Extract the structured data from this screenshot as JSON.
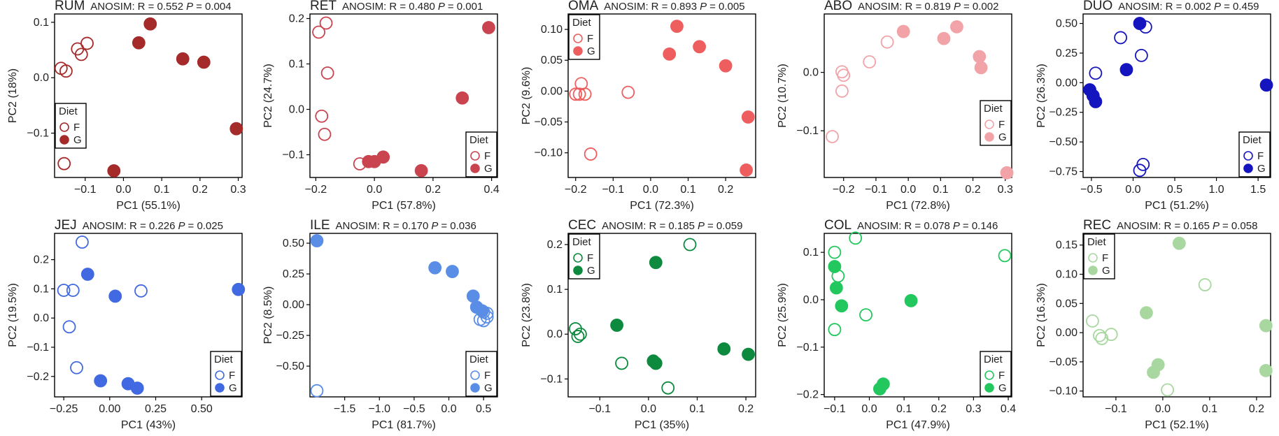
{
  "figure": {
    "layout": "2 rows x 5 panels"
  },
  "chart_data": [
    {
      "type": "scatter",
      "panel": "RUM",
      "title": "RUM",
      "test": "ANOSIM:",
      "r_text": "R = 0.552",
      "p_label": "P",
      "p_text": "= 0.004",
      "xlabel": "PC1 (55.1%)",
      "ylabel": "PC2 (18%)",
      "xlim": [
        -0.18,
        0.31
      ],
      "ylim": [
        -0.18,
        0.115
      ],
      "xticks": [
        -0.1,
        0,
        0.1,
        0.2,
        0.3
      ],
      "xtick_labels": [
        "−0.1",
        "0.0",
        "0.1",
        "0.2",
        "0.3"
      ],
      "yticks": [
        -0.1,
        0,
        0.1
      ],
      "ytick_labels": [
        "−0.1",
        "0.0",
        "0.1"
      ],
      "color": "#a52a2a",
      "legend": {
        "title": "Diet",
        "position": "middle-left",
        "entries": [
          "F",
          "G"
        ]
      },
      "series": [
        {
          "name": "F",
          "filled": false,
          "points": [
            [
              -0.163,
              0.017
            ],
            [
              -0.15,
              0.012
            ],
            [
              -0.12,
              0.052
            ],
            [
              -0.11,
              0.042
            ],
            [
              -0.095,
              0.062
            ],
            [
              -0.155,
              -0.155
            ]
          ]
        },
        {
          "name": "G",
          "filled": true,
          "points": [
            [
              -0.025,
              -0.168
            ],
            [
              0.04,
              0.063
            ],
            [
              0.07,
              0.097
            ],
            [
              0.155,
              0.034
            ],
            [
              0.21,
              0.028
            ],
            [
              0.295,
              -0.092
            ]
          ]
        }
      ]
    },
    {
      "type": "scatter",
      "panel": "RET",
      "title": "RET",
      "test": "ANOSIM:",
      "r_text": "R = 0.480",
      "p_label": "P",
      "p_text": "= 0.001",
      "xlabel": "PC1 (57.8%)",
      "ylabel": "PC2 (24.7%)",
      "xlim": [
        -0.22,
        0.42
      ],
      "ylim": [
        -0.15,
        0.21
      ],
      "xticks": [
        -0.2,
        0,
        0.2,
        0.4
      ],
      "xtick_labels": [
        "−0.2",
        "0.0",
        "0.2",
        "0.4"
      ],
      "yticks": [
        -0.1,
        0,
        0.1,
        0.2
      ],
      "ytick_labels": [
        "−0.1",
        "0.0",
        "0.1",
        "0.2"
      ],
      "color": "#c9444f",
      "legend": {
        "title": "Diet",
        "position": "bottom-right",
        "entries": [
          "F",
          "G"
        ]
      },
      "series": [
        {
          "name": "F",
          "filled": false,
          "points": [
            [
              -0.19,
              0.17
            ],
            [
              -0.165,
              0.19
            ],
            [
              -0.16,
              0.08
            ],
            [
              -0.18,
              -0.015
            ],
            [
              -0.17,
              -0.055
            ],
            [
              -0.05,
              -0.12
            ]
          ]
        },
        {
          "name": "G",
          "filled": true,
          "points": [
            [
              -0.02,
              -0.115
            ],
            [
              0.0,
              -0.115
            ],
            [
              0.03,
              -0.105
            ],
            [
              0.16,
              -0.135
            ],
            [
              0.3,
              0.025
            ],
            [
              0.39,
              0.18
            ]
          ]
        }
      ]
    },
    {
      "type": "scatter",
      "panel": "OMA",
      "title": "OMA",
      "test": "ANOSIM:",
      "r_text": "R = 0.893",
      "p_label": "P",
      "p_text": "= 0.005",
      "xlabel": "PC1 (72.3%)",
      "ylabel": "PC2 (9.6%)",
      "xlim": [
        -0.22,
        0.28
      ],
      "ylim": [
        -0.14,
        0.125
      ],
      "xticks": [
        -0.2,
        -0.1,
        0,
        0.1,
        0.2
      ],
      "xtick_labels": [
        "−0.2",
        "−0.1",
        "0.0",
        "0.1",
        "0.2"
      ],
      "yticks": [
        -0.1,
        -0.05,
        0,
        0.05,
        0.1
      ],
      "ytick_labels": [
        "−0.10",
        "−0.05",
        "0.00",
        "0.05",
        "0.10"
      ],
      "color": "#ee5e5e",
      "legend": {
        "title": "Diet",
        "position": "top-left",
        "entries": [
          "F",
          "G"
        ]
      },
      "series": [
        {
          "name": "F",
          "filled": false,
          "points": [
            [
              -0.2,
              -0.005
            ],
            [
              -0.19,
              -0.005
            ],
            [
              -0.185,
              0.012
            ],
            [
              -0.175,
              -0.005
            ],
            [
              -0.06,
              -0.002
            ],
            [
              -0.16,
              -0.102
            ]
          ]
        },
        {
          "name": "G",
          "filled": true,
          "points": [
            [
              0.05,
              0.06
            ],
            [
              0.07,
              0.105
            ],
            [
              0.13,
              0.072
            ],
            [
              0.2,
              0.041
            ],
            [
              0.26,
              -0.042
            ],
            [
              0.255,
              -0.128
            ]
          ]
        }
      ]
    },
    {
      "type": "scatter",
      "panel": "ABO",
      "title": "ABO",
      "test": "ANOSIM:",
      "r_text": "R = 0.819",
      "p_label": "P",
      "p_text": "= 0.002",
      "xlabel": "PC1 (72.8%)",
      "ylabel": "PC2 (10.7%)",
      "xlim": [
        -0.26,
        0.32
      ],
      "ylim": [
        -0.18,
        0.1
      ],
      "xticks": [
        -0.2,
        -0.1,
        0,
        0.1,
        0.2,
        0.3
      ],
      "xtick_labels": [
        "−0.2",
        "−0.1",
        "0.0",
        "0.1",
        "0.2",
        "0.3"
      ],
      "yticks": [
        -0.1,
        0
      ],
      "ytick_labels": [
        "−0.1",
        "0.0"
      ],
      "color": "#f2a3a8",
      "legend": {
        "title": "Diet",
        "position": "middle-right",
        "entries": [
          "F",
          "G"
        ]
      },
      "series": [
        {
          "name": "F",
          "filled": false,
          "points": [
            [
              -0.235,
              -0.11
            ],
            [
              -0.205,
              -0.032
            ],
            [
              -0.205,
              0.001
            ],
            [
              -0.2,
              -0.005
            ],
            [
              -0.12,
              0.018
            ],
            [
              -0.065,
              0.052
            ]
          ]
        },
        {
          "name": "G",
          "filled": true,
          "points": [
            [
              -0.015,
              0.07
            ],
            [
              0.11,
              0.058
            ],
            [
              0.15,
              0.078
            ],
            [
              0.22,
              0.027
            ],
            [
              0.225,
              0.008
            ],
            [
              0.305,
              -0.172
            ]
          ]
        }
      ]
    },
    {
      "type": "scatter",
      "panel": "DUO",
      "title": "DUO",
      "test": "ANOSIM:",
      "r_text": "R = 0.002",
      "p_label": "P",
      "p_text": "= 0.459",
      "xlabel": "PC1 (51.2%)",
      "ylabel": "PC2 (26.3%)",
      "xlim": [
        -0.6,
        1.65
      ],
      "ylim": [
        -0.8,
        0.58
      ],
      "xticks": [
        -0.5,
        0,
        0.5,
        1.0,
        1.5
      ],
      "xtick_labels": [
        "−0.5",
        "0.0",
        "0.5",
        "1.0",
        "1.5"
      ],
      "yticks": [
        -0.75,
        -0.5,
        -0.25,
        0,
        0.25,
        0.5
      ],
      "ytick_labels": [
        "−0.75",
        "−0.50",
        "−0.25",
        "0.00",
        "0.25",
        "0.50"
      ],
      "color": "#1515c0",
      "legend": {
        "title": "Diet",
        "position": "bottom-right",
        "entries": [
          "F",
          "G"
        ]
      },
      "series": [
        {
          "name": "F",
          "filled": false,
          "points": [
            [
              -0.45,
              0.08
            ],
            [
              -0.15,
              0.38
            ],
            [
              0.1,
              0.23
            ],
            [
              0.15,
              0.47
            ],
            [
              0.12,
              -0.69
            ],
            [
              0.08,
              -0.74
            ]
          ]
        },
        {
          "name": "G",
          "filled": true,
          "points": [
            [
              -0.52,
              -0.06
            ],
            [
              -0.48,
              -0.11
            ],
            [
              -0.45,
              -0.16
            ],
            [
              -0.08,
              0.11
            ],
            [
              0.08,
              0.5
            ],
            [
              1.6,
              -0.02
            ]
          ]
        }
      ]
    },
    {
      "type": "scatter",
      "panel": "JEJ",
      "title": "JEJ",
      "test": "ANOSIM:",
      "r_text": "R = 0.226",
      "p_label": "P",
      "p_text": "= 0.025",
      "xlabel": "PC1 (43%)",
      "ylabel": "PC2 (19.5%)",
      "xlim": [
        -0.3,
        0.72
      ],
      "ylim": [
        -0.27,
        0.29
      ],
      "xticks": [
        -0.25,
        0,
        0.25,
        0.5
      ],
      "xtick_labels": [
        "−0.25",
        "0.00",
        "0.25",
        "0.50"
      ],
      "yticks": [
        -0.2,
        -0.1,
        0,
        0.1,
        0.2
      ],
      "ytick_labels": [
        "−0.2",
        "−0.1",
        "0.0",
        "0.1",
        "0.2"
      ],
      "color": "#4169e1",
      "legend": {
        "title": "Diet",
        "position": "bottom-right",
        "entries": [
          "F",
          "G"
        ]
      },
      "series": [
        {
          "name": "F",
          "filled": false,
          "points": [
            [
              -0.15,
              0.26
            ],
            [
              -0.25,
              0.095
            ],
            [
              -0.2,
              0.095
            ],
            [
              0.17,
              0.093
            ],
            [
              -0.22,
              -0.03
            ],
            [
              -0.18,
              -0.17
            ]
          ]
        },
        {
          "name": "G",
          "filled": true,
          "points": [
            [
              -0.12,
              0.15
            ],
            [
              0.03,
              0.075
            ],
            [
              -0.05,
              -0.215
            ],
            [
              0.1,
              -0.225
            ],
            [
              0.15,
              -0.24
            ],
            [
              0.7,
              0.098
            ]
          ]
        }
      ]
    },
    {
      "type": "scatter",
      "panel": "ILE",
      "title": "ILE",
      "test": "ANOSIM:",
      "r_text": "R = 0.170",
      "p_label": "P",
      "p_text": "= 0.036",
      "xlabel": "PC1 (81.7%)",
      "ylabel": "PC2 (8.5%)",
      "xlim": [
        -2.0,
        0.7
      ],
      "ylim": [
        -0.75,
        0.58
      ],
      "xticks": [
        -1.5,
        -1.0,
        -0.5,
        0,
        0.5
      ],
      "xtick_labels": [
        "−1.5",
        "−1.0",
        "−0.5",
        "0.0",
        "0.5"
      ],
      "yticks": [
        -0.5,
        -0.25,
        0,
        0.25,
        0.5
      ],
      "ytick_labels": [
        "−0.50",
        "−0.25",
        "0.00",
        "0.25",
        "0.50"
      ],
      "color": "#5a8ee6",
      "legend": {
        "title": "Diet",
        "position": "bottom-right",
        "entries": [
          "F",
          "G"
        ]
      },
      "series": [
        {
          "name": "F",
          "filled": false,
          "points": [
            [
              -1.9,
              -0.7
            ],
            [
              0.45,
              -0.12
            ],
            [
              0.5,
              -0.13
            ],
            [
              0.55,
              -0.1
            ],
            [
              0.55,
              -0.07
            ],
            [
              0.5,
              -0.06
            ]
          ]
        },
        {
          "name": "G",
          "filled": true,
          "points": [
            [
              -1.9,
              0.52
            ],
            [
              -0.2,
              0.3
            ],
            [
              0.05,
              0.27
            ],
            [
              0.35,
              0.07
            ],
            [
              0.4,
              -0.02
            ],
            [
              0.48,
              -0.05
            ]
          ]
        }
      ]
    },
    {
      "type": "scatter",
      "panel": "CEC",
      "title": "CEC",
      "test": "ANOSIM:",
      "r_text": "R = 0.185",
      "p_label": "P",
      "p_text": "= 0.059",
      "xlabel": "PC1 (35%)",
      "ylabel": "PC2 (23.8%)",
      "xlim": [
        -0.165,
        0.22
      ],
      "ylim": [
        -0.14,
        0.225
      ],
      "xticks": [
        -0.1,
        0,
        0.1,
        0.2
      ],
      "xtick_labels": [
        "−0.1",
        "0.0",
        "0.1",
        "0.2"
      ],
      "yticks": [
        -0.1,
        0,
        0.1,
        0.2
      ],
      "ytick_labels": [
        "−0.1",
        "0.0",
        "0.1",
        "0.2"
      ],
      "color": "#0e8a3e",
      "legend": {
        "title": "Diet",
        "position": "top-left",
        "entries": [
          "F",
          "G"
        ]
      },
      "series": [
        {
          "name": "F",
          "filled": false,
          "points": [
            [
              -0.15,
              0.012
            ],
            [
              -0.145,
              -0.005
            ],
            [
              -0.14,
              0.0
            ],
            [
              -0.055,
              -0.065
            ],
            [
              0.04,
              -0.12
            ],
            [
              0.085,
              0.2
            ]
          ]
        },
        {
          "name": "G",
          "filled": true,
          "points": [
            [
              -0.065,
              0.02
            ],
            [
              0.01,
              -0.06
            ],
            [
              0.015,
              -0.065
            ],
            [
              0.015,
              0.16
            ],
            [
              0.155,
              -0.033
            ],
            [
              0.205,
              -0.045
            ]
          ]
        }
      ]
    },
    {
      "type": "scatter",
      "panel": "COL",
      "title": "COL",
      "test": "ANOSIM:",
      "r_text": "R = 0.078",
      "p_label": "P",
      "p_text": "= 0.146",
      "xlabel": "PC1 (47.9%)",
      "ylabel": "PC2 (25.9%)",
      "xlim": [
        -0.13,
        0.41
      ],
      "ylim": [
        -0.205,
        0.14
      ],
      "xticks": [
        -0.1,
        0,
        0.1,
        0.2,
        0.3,
        0.4
      ],
      "xtick_labels": [
        "−0.1",
        "0.0",
        "0.1",
        "0.2",
        "0.3",
        "0.4"
      ],
      "yticks": [
        -0.2,
        -0.1,
        0,
        0.1
      ],
      "ytick_labels": [
        "−0.2",
        "−0.1",
        "0.0",
        "0.1"
      ],
      "color": "#22c75e",
      "legend": {
        "title": "Diet",
        "position": "bottom-right",
        "entries": [
          "F",
          "G"
        ]
      },
      "series": [
        {
          "name": "F",
          "filled": false,
          "points": [
            [
              -0.1,
              0.1
            ],
            [
              -0.09,
              0.05
            ],
            [
              -0.04,
              0.13
            ],
            [
              -0.1,
              -0.063
            ],
            [
              -0.01,
              -0.032
            ],
            [
              0.39,
              0.093
            ]
          ]
        },
        {
          "name": "G",
          "filled": true,
          "points": [
            [
              -0.1,
              0.07
            ],
            [
              -0.095,
              0.025
            ],
            [
              -0.08,
              -0.013
            ],
            [
              0.12,
              -0.002
            ],
            [
              0.03,
              -0.188
            ],
            [
              0.04,
              -0.178
            ]
          ]
        }
      ]
    },
    {
      "type": "scatter",
      "panel": "REC",
      "title": "REC",
      "test": "ANOSIM:",
      "r_text": "R = 0.165",
      "p_label": "P",
      "p_text": "= 0.058",
      "xlabel": "PC1 (52.1%)",
      "ylabel": "PC2 (16.3%)",
      "xlim": [
        -0.17,
        0.23
      ],
      "ylim": [
        -0.11,
        0.17
      ],
      "xticks": [
        -0.1,
        0,
        0.1,
        0.2
      ],
      "xtick_labels": [
        "−0.1",
        "0.0",
        "0.1",
        "0.2"
      ],
      "yticks": [
        -0.1,
        -0.05,
        0,
        0.05,
        0.1,
        0.15
      ],
      "ytick_labels": [
        "−0.10",
        "−0.05",
        "0.00",
        "0.05",
        "0.10",
        "0.15"
      ],
      "color": "#a8d8a0",
      "legend": {
        "title": "Diet",
        "position": "top-left",
        "entries": [
          "F",
          "G"
        ]
      },
      "series": [
        {
          "name": "F",
          "filled": false,
          "points": [
            [
              -0.15,
              0.02
            ],
            [
              -0.135,
              -0.005
            ],
            [
              -0.13,
              -0.01
            ],
            [
              -0.11,
              -0.003
            ],
            [
              0.01,
              -0.098
            ],
            [
              0.09,
              0.082
            ]
          ]
        },
        {
          "name": "G",
          "filled": true,
          "points": [
            [
              -0.035,
              0.034
            ],
            [
              -0.02,
              -0.068
            ],
            [
              -0.01,
              -0.055
            ],
            [
              0.035,
              0.153
            ],
            [
              0.22,
              0.012
            ],
            [
              0.22,
              -0.065
            ]
          ]
        }
      ]
    }
  ]
}
